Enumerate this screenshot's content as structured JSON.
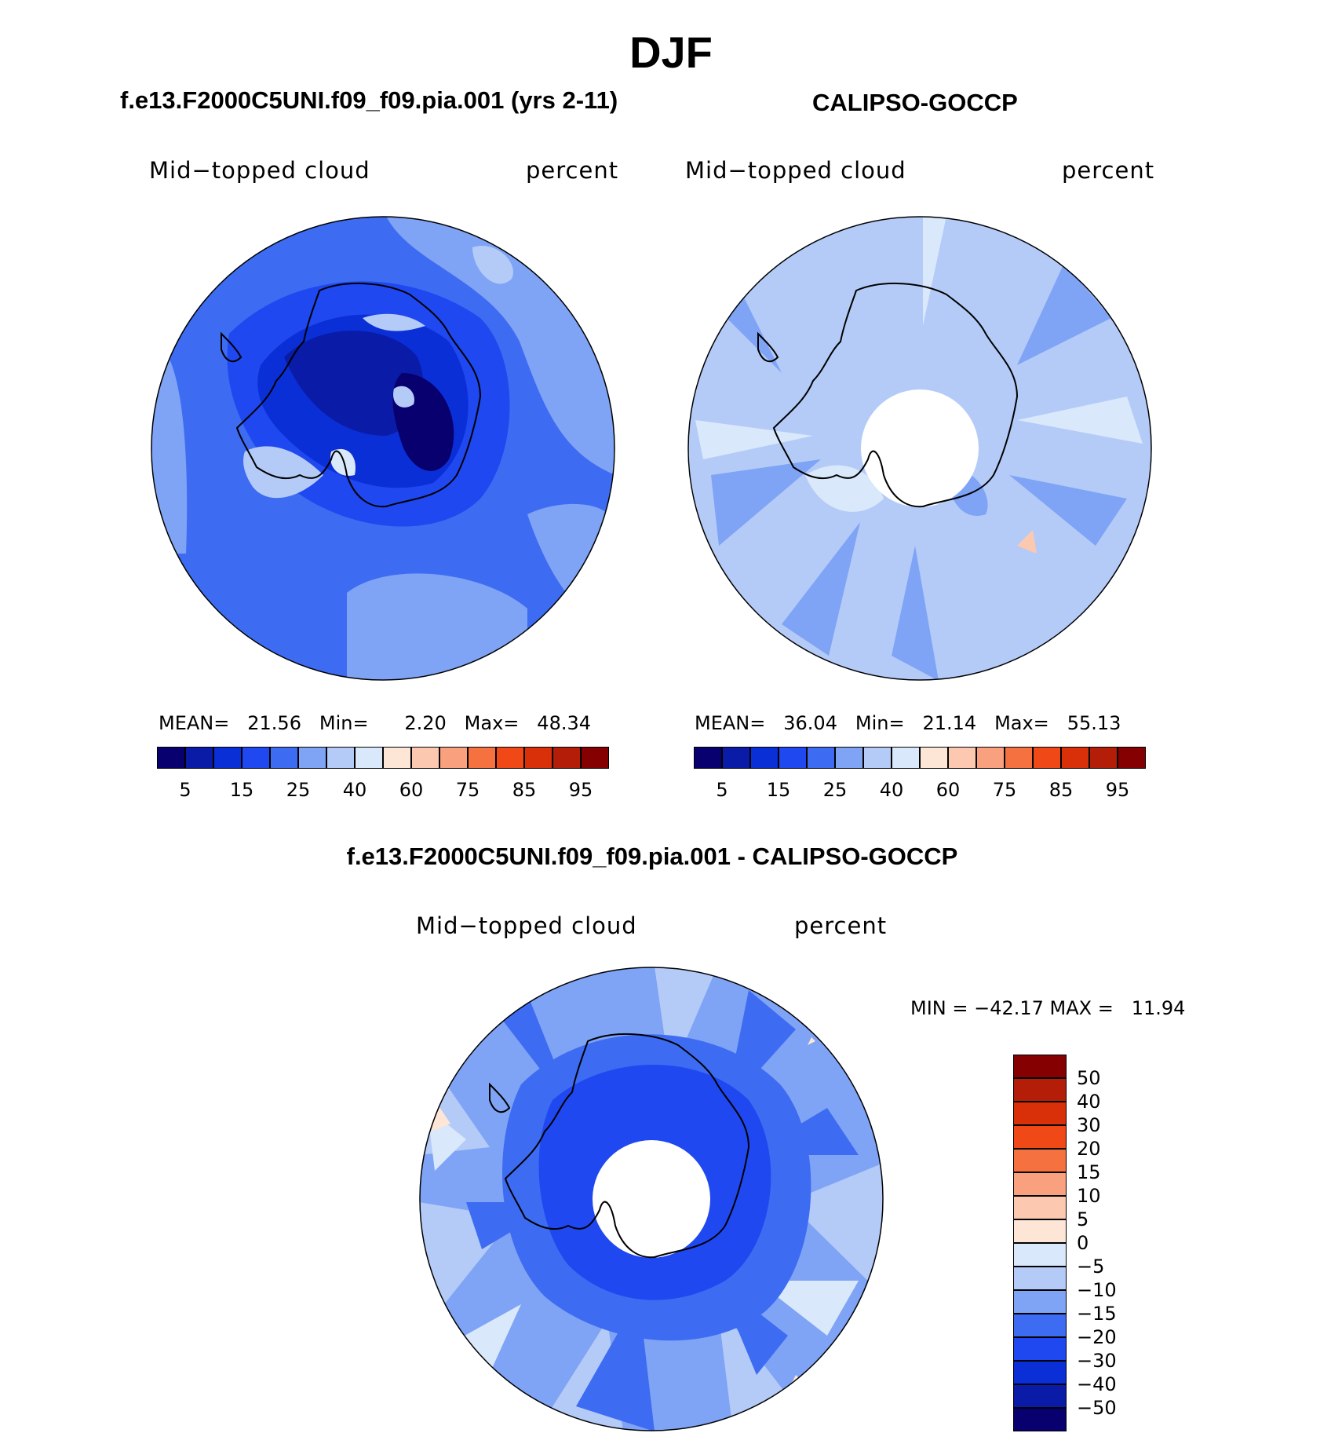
{
  "season": "DJF",
  "panels": [
    {
      "title": "f.e13.F2000C5UNI.f09_f09.pia.001 (yrs 2-11)",
      "variable": "Mid−topped cloud",
      "units": "percent",
      "mean_label": "MEAN=",
      "mean": "21.56",
      "min_label": "Min=",
      "min": "2.20",
      "max_label": "Max=",
      "max": "48.34"
    },
    {
      "title": "CALIPSO-GOCCP",
      "variable": "Mid−topped cloud",
      "units": "percent",
      "mean_label": "MEAN=",
      "mean": "36.04",
      "min_label": "Min=",
      "min": "21.14",
      "max_label": "Max=",
      "max": "55.13"
    }
  ],
  "diff_panel": {
    "title": "f.e13.F2000C5UNI.f09_f09.pia.001 - CALIPSO-GOCCP",
    "variable": "Mid−topped cloud",
    "units": "percent",
    "minmax": "MIN = −42.17 MAX =   11.94"
  },
  "abs_colorbar": {
    "ticks": [
      "5",
      "15",
      "25",
      "40",
      "60",
      "75",
      "85",
      "95"
    ],
    "colors": [
      "#08006e",
      "#0a1ba8",
      "#0a2fd6",
      "#1f48f0",
      "#3d6cf2",
      "#7fa3f5",
      "#b4cbf8",
      "#d9e8fb",
      "#fde6d6",
      "#fcc9b0",
      "#f9a07f",
      "#f5713f",
      "#f04817",
      "#d9300a",
      "#b41e08",
      "#850000"
    ]
  },
  "diff_colorbar": {
    "ticks": [
      "50",
      "40",
      "30",
      "20",
      "15",
      "10",
      "5",
      "0",
      "−5",
      "−10",
      "−15",
      "−20",
      "−30",
      "−40",
      "−50"
    ],
    "colors": [
      "#850000",
      "#b41e08",
      "#d9300a",
      "#f04817",
      "#f5713f",
      "#f9a07f",
      "#fcc9b0",
      "#fde6d6",
      "#d9e8fb",
      "#b4cbf8",
      "#7fa3f5",
      "#3d6cf2",
      "#1f48f0",
      "#0a2fd6",
      "#0a1ba8",
      "#08006e"
    ]
  },
  "chart_data": [
    {
      "type": "heatmap",
      "title": "f.e13.F2000C5UNI.f09_f09.pia.001 (yrs 2-11)",
      "subtitle": "Mid−topped cloud",
      "units": "percent",
      "stats": {
        "mean": 21.56,
        "min": 2.2,
        "max": 48.34
      },
      "levels": [
        5,
        10,
        15,
        20,
        25,
        30,
        40,
        50,
        60,
        70,
        75,
        80,
        85,
        90,
        95
      ]
    },
    {
      "type": "heatmap",
      "title": "CALIPSO-GOCCP",
      "subtitle": "Mid−topped cloud",
      "units": "percent",
      "stats": {
        "mean": 36.04,
        "min": 21.14,
        "max": 55.13
      },
      "levels": [
        5,
        10,
        15,
        20,
        25,
        30,
        40,
        50,
        60,
        70,
        75,
        80,
        85,
        90,
        95
      ]
    },
    {
      "type": "heatmap",
      "title": "f.e13.F2000C5UNI.f09_f09.pia.001 - CALIPSO-GOCCP",
      "subtitle": "Mid−topped cloud",
      "units": "percent",
      "stats": {
        "min": -42.17,
        "max": 11.94
      },
      "levels": [
        -50,
        -40,
        -30,
        -20,
        -15,
        -10,
        -5,
        0,
        5,
        10,
        15,
        20,
        30,
        40,
        50
      ]
    }
  ]
}
